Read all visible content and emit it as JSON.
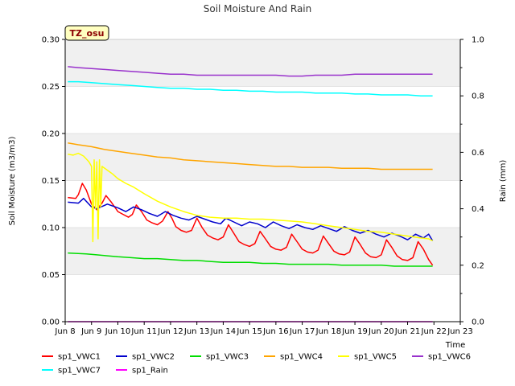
{
  "chart_data": {
    "type": "line",
    "title": "Soil Moisture And Rain",
    "site_label": "TZ_osu",
    "xlabel": "Time",
    "ylabel": "Soil Moisture (m3/m3)",
    "y2label": "Rain (mm)",
    "xlim": [
      8,
      23
    ],
    "ylim": [
      0,
      0.3
    ],
    "y2lim": [
      0,
      1.0
    ],
    "x_ticks": [
      8,
      9,
      10,
      11,
      12,
      13,
      14,
      15,
      16,
      17,
      18,
      19,
      20,
      21,
      22,
      23
    ],
    "x_tick_labels": [
      "Jun 8",
      "Jun 9",
      "Jun 10",
      "Jun 11",
      "Jun 12",
      "Jun 13",
      "Jun 14",
      "Jun 15",
      "Jun 16",
      "Jun 17",
      "Jun 18",
      "Jun 19",
      "Jun 20",
      "Jun 21",
      "Jun 22",
      "Jun 23"
    ],
    "y_ticks": [
      0.0,
      0.05,
      0.1,
      0.15,
      0.2,
      0.25,
      0.3
    ],
    "y_tick_labels": [
      "0.00",
      "0.05",
      "0.10",
      "0.15",
      "0.20",
      "0.25",
      "0.30"
    ],
    "y2_ticks": [
      0.0,
      0.2,
      0.4,
      0.6,
      0.8,
      1.0
    ],
    "y2_tick_labels": [
      "0.0",
      "0.2",
      "0.4",
      "0.6",
      "0.8",
      "1.0"
    ],
    "series": [
      {
        "name": "sp1_VWC1",
        "color": "#ff0000",
        "axis": "left",
        "x": [
          8.1,
          8.4,
          8.5,
          8.65,
          8.8,
          9.0,
          9.2,
          9.4,
          9.55,
          9.75,
          10.0,
          10.2,
          10.4,
          10.55,
          10.7,
          10.9,
          11.1,
          11.3,
          11.5,
          11.7,
          11.9,
          12.05,
          12.2,
          12.4,
          12.6,
          12.8,
          13.0,
          13.2,
          13.4,
          13.6,
          13.8,
          14.0,
          14.2,
          14.4,
          14.6,
          14.8,
          15.0,
          15.2,
          15.4,
          15.6,
          15.8,
          16.0,
          16.2,
          16.4,
          16.6,
          16.8,
          17.0,
          17.2,
          17.4,
          17.6,
          17.8,
          18.0,
          18.2,
          18.4,
          18.6,
          18.8,
          19.0,
          19.2,
          19.4,
          19.6,
          19.8,
          20.0,
          20.2,
          20.4,
          20.6,
          20.8,
          21.0,
          21.2,
          21.4,
          21.6,
          21.8,
          21.95
        ],
        "values": [
          0.132,
          0.131,
          0.135,
          0.147,
          0.14,
          0.125,
          0.119,
          0.126,
          0.134,
          0.127,
          0.117,
          0.114,
          0.111,
          0.114,
          0.124,
          0.117,
          0.108,
          0.105,
          0.103,
          0.107,
          0.117,
          0.11,
          0.101,
          0.097,
          0.095,
          0.097,
          0.11,
          0.1,
          0.092,
          0.089,
          0.087,
          0.09,
          0.103,
          0.094,
          0.085,
          0.082,
          0.08,
          0.083,
          0.096,
          0.088,
          0.08,
          0.077,
          0.076,
          0.079,
          0.093,
          0.085,
          0.077,
          0.074,
          0.073,
          0.076,
          0.091,
          0.083,
          0.075,
          0.072,
          0.071,
          0.074,
          0.09,
          0.082,
          0.073,
          0.069,
          0.068,
          0.071,
          0.087,
          0.079,
          0.07,
          0.066,
          0.065,
          0.068,
          0.085,
          0.077,
          0.066,
          0.06
        ]
      },
      {
        "name": "sp1_VWC2",
        "color": "#0000cc",
        "axis": "left",
        "x": [
          8.1,
          8.5,
          8.7,
          9.0,
          9.2,
          9.6,
          10.0,
          10.3,
          10.6,
          10.9,
          11.2,
          11.5,
          11.8,
          12.1,
          12.4,
          12.7,
          13.0,
          13.3,
          13.6,
          13.9,
          14.1,
          14.4,
          14.7,
          15.0,
          15.3,
          15.6,
          15.9,
          16.2,
          16.5,
          16.8,
          17.1,
          17.4,
          17.7,
          18.0,
          18.3,
          18.6,
          18.9,
          19.2,
          19.5,
          19.8,
          20.1,
          20.4,
          20.7,
          21.0,
          21.3,
          21.6,
          21.8,
          21.95
        ],
        "values": [
          0.127,
          0.126,
          0.131,
          0.122,
          0.12,
          0.125,
          0.121,
          0.117,
          0.122,
          0.119,
          0.115,
          0.112,
          0.117,
          0.113,
          0.11,
          0.108,
          0.112,
          0.109,
          0.106,
          0.104,
          0.11,
          0.106,
          0.102,
          0.106,
          0.104,
          0.1,
          0.106,
          0.102,
          0.099,
          0.103,
          0.1,
          0.098,
          0.102,
          0.099,
          0.096,
          0.101,
          0.097,
          0.094,
          0.097,
          0.093,
          0.09,
          0.094,
          0.091,
          0.087,
          0.093,
          0.089,
          0.093,
          0.086
        ]
      },
      {
        "name": "sp1_VWC3",
        "color": "#00dd00",
        "axis": "left",
        "x": [
          8.1,
          8.8,
          9.2,
          9.6,
          10.0,
          10.5,
          11.0,
          11.5,
          12.0,
          12.5,
          13.0,
          13.5,
          14.0,
          14.5,
          15.0,
          15.5,
          16.0,
          16.5,
          17.0,
          17.5,
          18.0,
          18.5,
          19.0,
          19.5,
          20.0,
          20.5,
          21.0,
          21.5,
          21.95
        ],
        "values": [
          0.073,
          0.072,
          0.071,
          0.07,
          0.069,
          0.068,
          0.067,
          0.067,
          0.066,
          0.065,
          0.065,
          0.064,
          0.063,
          0.063,
          0.063,
          0.062,
          0.062,
          0.061,
          0.061,
          0.061,
          0.061,
          0.06,
          0.06,
          0.06,
          0.06,
          0.059,
          0.059,
          0.059,
          0.059
        ]
      },
      {
        "name": "sp1_VWC4",
        "color": "#ffa500",
        "axis": "left",
        "x": [
          8.1,
          8.5,
          9.0,
          9.5,
          10.0,
          10.5,
          11.0,
          11.5,
          12.0,
          12.5,
          13.0,
          13.5,
          14.0,
          14.5,
          15.0,
          15.5,
          16.0,
          16.5,
          17.0,
          17.5,
          18.0,
          18.5,
          19.0,
          19.5,
          20.0,
          20.5,
          21.0,
          21.5,
          21.95
        ],
        "values": [
          0.19,
          0.188,
          0.186,
          0.183,
          0.181,
          0.179,
          0.177,
          0.175,
          0.174,
          0.172,
          0.171,
          0.17,
          0.169,
          0.168,
          0.167,
          0.166,
          0.165,
          0.165,
          0.164,
          0.164,
          0.164,
          0.163,
          0.163,
          0.163,
          0.162,
          0.162,
          0.162,
          0.162,
          0.162
        ]
      },
      {
        "name": "sp1_VWC5",
        "color": "#ffff00",
        "axis": "left",
        "x": [
          8.1,
          8.3,
          8.5,
          8.7,
          8.9,
          9.0,
          9.05,
          9.1,
          9.15,
          9.2,
          9.25,
          9.3,
          9.35,
          9.4,
          9.6,
          9.8,
          10.0,
          10.3,
          10.6,
          11.0,
          11.5,
          12.0,
          12.5,
          13.0,
          13.5,
          14.0,
          14.5,
          15.0,
          15.5,
          16.0,
          16.5,
          17.0,
          17.5,
          18.0,
          18.5,
          19.0,
          19.5,
          20.0,
          20.5,
          21.0,
          21.5,
          21.8,
          21.95
        ],
        "values": [
          0.178,
          0.177,
          0.179,
          0.176,
          0.17,
          0.165,
          0.085,
          0.172,
          0.12,
          0.17,
          0.088,
          0.172,
          0.122,
          0.165,
          0.161,
          0.157,
          0.152,
          0.147,
          0.143,
          0.136,
          0.128,
          0.122,
          0.117,
          0.113,
          0.111,
          0.11,
          0.11,
          0.109,
          0.109,
          0.108,
          0.107,
          0.106,
          0.104,
          0.102,
          0.1,
          0.098,
          0.096,
          0.095,
          0.093,
          0.091,
          0.089,
          0.088,
          0.086
        ]
      },
      {
        "name": "sp1_VWC6",
        "color": "#9932cc",
        "axis": "left",
        "x": [
          8.1,
          8.5,
          9.0,
          9.5,
          10.0,
          10.5,
          11.0,
          11.5,
          12.0,
          12.5,
          13.0,
          13.5,
          14.0,
          14.5,
          15.0,
          15.5,
          16.0,
          16.5,
          17.0,
          17.5,
          18.0,
          18.5,
          19.0,
          19.5,
          20.0,
          20.5,
          21.0,
          21.5,
          21.95
        ],
        "values": [
          0.271,
          0.27,
          0.269,
          0.268,
          0.267,
          0.266,
          0.265,
          0.264,
          0.263,
          0.263,
          0.262,
          0.262,
          0.262,
          0.262,
          0.262,
          0.262,
          0.262,
          0.261,
          0.261,
          0.262,
          0.262,
          0.262,
          0.263,
          0.263,
          0.263,
          0.263,
          0.263,
          0.263,
          0.263
        ]
      },
      {
        "name": "sp1_VWC7",
        "color": "#00ffff",
        "axis": "left",
        "x": [
          8.1,
          8.5,
          9.0,
          9.5,
          10.0,
          10.5,
          11.0,
          11.5,
          12.0,
          12.5,
          13.0,
          13.5,
          14.0,
          14.5,
          15.0,
          15.5,
          16.0,
          16.5,
          17.0,
          17.5,
          18.0,
          18.5,
          19.0,
          19.5,
          20.0,
          20.5,
          21.0,
          21.5,
          21.95
        ],
        "values": [
          0.255,
          0.255,
          0.254,
          0.253,
          0.252,
          0.251,
          0.25,
          0.249,
          0.248,
          0.248,
          0.247,
          0.247,
          0.246,
          0.246,
          0.245,
          0.245,
          0.244,
          0.244,
          0.244,
          0.243,
          0.243,
          0.243,
          0.242,
          0.242,
          0.241,
          0.241,
          0.241,
          0.24,
          0.24
        ]
      },
      {
        "name": "sp1_Rain",
        "color": "#ff00ff",
        "axis": "right",
        "x": [
          8.1,
          21.95
        ],
        "values": [
          0.0,
          0.0
        ]
      }
    ],
    "legend": {
      "placement": "bottom",
      "entries": [
        "sp1_VWC1",
        "sp1_VWC2",
        "sp1_VWC3",
        "sp1_VWC4",
        "sp1_VWC5",
        "sp1_VWC6",
        "sp1_VWC7",
        "sp1_Rain"
      ]
    }
  }
}
